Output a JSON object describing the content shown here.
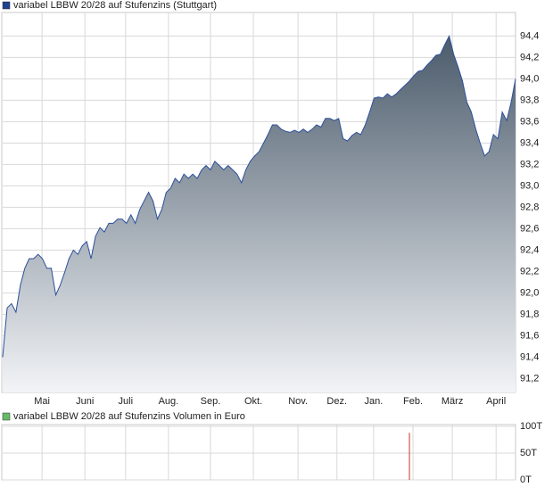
{
  "chart_data": [
    {
      "type": "area",
      "title": "variabel LBBW 20/28 auf Stufenzins (Stuttgart)",
      "legend_color": "#1f3f8f",
      "series": [
        {
          "name": "variabel LBBW 20/28 auf Stufenzins (Stuttgart)",
          "color": "#2b4f9c",
          "values": [
            91.4,
            91.86,
            91.9,
            91.82,
            92.07,
            92.23,
            92.32,
            92.32,
            92.36,
            92.32,
            92.23,
            92.23,
            91.98,
            92.07,
            92.19,
            92.32,
            92.4,
            92.36,
            92.44,
            92.48,
            92.32,
            92.53,
            92.61,
            92.57,
            92.65,
            92.65,
            92.69,
            92.69,
            92.65,
            92.73,
            92.65,
            92.78,
            92.86,
            92.94,
            92.86,
            92.69,
            92.78,
            92.94,
            92.98,
            93.07,
            93.03,
            93.11,
            93.07,
            93.11,
            93.07,
            93.15,
            93.19,
            93.15,
            93.23,
            93.19,
            93.15,
            93.19,
            93.15,
            93.11,
            93.03,
            93.15,
            93.23,
            93.28,
            93.32,
            93.4,
            93.48,
            93.57,
            93.57,
            93.53,
            93.51,
            93.5,
            93.52,
            93.5,
            93.53,
            93.5,
            93.53,
            93.57,
            93.55,
            93.63,
            93.63,
            93.61,
            93.63,
            93.44,
            93.42,
            93.47,
            93.5,
            93.48,
            93.57,
            93.69,
            93.82,
            93.83,
            93.82,
            93.86,
            93.83,
            93.86,
            93.9,
            93.94,
            93.98,
            94.03,
            94.07,
            94.08,
            94.13,
            94.17,
            94.22,
            94.23,
            94.32,
            94.4,
            94.23,
            94.11,
            93.98,
            93.78,
            93.69,
            93.53,
            93.4,
            93.28,
            93.32,
            93.48,
            93.44,
            93.69,
            93.61,
            93.78,
            94.0
          ]
        }
      ],
      "fill_top": "#4b5b6b",
      "fill_bottom": "#f2f4f7",
      "xlim": [
        0,
        116
      ],
      "xticks": [
        {
          "value": 8.9,
          "label": "Mai"
        },
        {
          "value": 18.6,
          "label": "Juni"
        },
        {
          "value": 27.8,
          "label": "Juli"
        },
        {
          "value": 37.5,
          "label": "Aug."
        },
        {
          "value": 47,
          "label": "Sep."
        },
        {
          "value": 56.7,
          "label": "Okt."
        },
        {
          "value": 66.8,
          "label": "Nov."
        },
        {
          "value": 75.6,
          "label": "Dez."
        },
        {
          "value": 83.9,
          "label": "Jan."
        },
        {
          "value": 92.8,
          "label": "Feb."
        },
        {
          "value": 101.7,
          "label": "März"
        },
        {
          "value": 111.6,
          "label": "April"
        }
      ],
      "ylim": [
        91.07,
        94.62
      ],
      "yticks": [
        {
          "value": 91.2,
          "label": "91,2"
        },
        {
          "value": 91.4,
          "label": "91,4"
        },
        {
          "value": 91.6,
          "label": "91,6"
        },
        {
          "value": 91.8,
          "label": "91,8"
        },
        {
          "value": 92.0,
          "label": "92,0"
        },
        {
          "value": 92.2,
          "label": "92,2"
        },
        {
          "value": 92.4,
          "label": "92,4"
        },
        {
          "value": 92.6,
          "label": "92,6"
        },
        {
          "value": 92.8,
          "label": "92,8"
        },
        {
          "value": 93.0,
          "label": "93,0"
        },
        {
          "value": 93.2,
          "label": "93,2"
        },
        {
          "value": 93.4,
          "label": "93,4"
        },
        {
          "value": 93.6,
          "label": "93,6"
        },
        {
          "value": 93.8,
          "label": "93,8"
        },
        {
          "value": 94.0,
          "label": "94,0"
        },
        {
          "value": 94.2,
          "label": "94,2"
        },
        {
          "value": 94.4,
          "label": "94,4"
        }
      ],
      "grid": true
    },
    {
      "type": "bar",
      "title": "variabel LBBW 20/28 auf Stufenzins Volumen in Euro",
      "legend_color": "#66bb66",
      "color": "#c0392b",
      "values": [
        0,
        0,
        0,
        0,
        0,
        0,
        0,
        0,
        0,
        0,
        0,
        0,
        0,
        0,
        0,
        0,
        0,
        0,
        0,
        0,
        0,
        0,
        0,
        0,
        0,
        0,
        0,
        0,
        0,
        0,
        0,
        0,
        0,
        0,
        0,
        0,
        0,
        0,
        0,
        0,
        0,
        0,
        0,
        0,
        0,
        0,
        0,
        0,
        0,
        0,
        0,
        0,
        0,
        0,
        0,
        0,
        0,
        0,
        0,
        0,
        0,
        0,
        0,
        0,
        0,
        0,
        0,
        0,
        0,
        0,
        0,
        0,
        0,
        0,
        0,
        0,
        0,
        0,
        0,
        0,
        0,
        0,
        0,
        0,
        0,
        0,
        0,
        0,
        0,
        0,
        0,
        0,
        88000,
        0,
        0,
        0,
        0,
        0,
        0,
        0,
        0,
        0,
        0,
        0,
        0,
        0,
        0,
        0,
        0,
        0,
        0,
        0,
        0,
        0,
        0,
        0,
        0
      ],
      "xlim": [
        0,
        116
      ],
      "ylim": [
        0,
        103400
      ],
      "yticks": [
        {
          "value": 0,
          "label": "0T"
        },
        {
          "value": 50000,
          "label": "50T"
        },
        {
          "value": 100000,
          "label": "100T"
        }
      ],
      "grid": true
    }
  ]
}
